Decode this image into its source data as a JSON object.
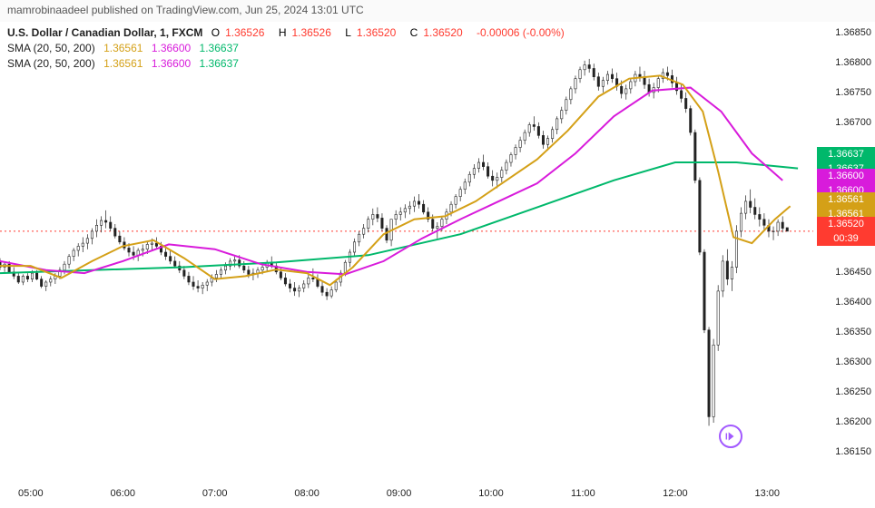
{
  "header": {
    "text": "mamrobinaadeel published on TradingView.com, Jun 25, 2024 13:01 UTC"
  },
  "symbol": {
    "name": "U.S. Dollar / Canadian Dollar, 1, FXCM"
  },
  "ohlc": {
    "open_lbl": "O",
    "open": "1.36526",
    "high_lbl": "H",
    "high": "1.36526",
    "low_lbl": "L",
    "low": "1.36520",
    "close_lbl": "C",
    "close": "1.36520",
    "change": "-0.00006 (-0.00%)"
  },
  "indicators": [
    {
      "name": "SMA (20, 50, 200)",
      "v1": "1.36561",
      "c1": "#d4a017",
      "v2": "1.36600",
      "c2": "#d81bdb",
      "v3": "1.36637",
      "c3": "#00b86b"
    },
    {
      "name": "SMA (20, 50, 200)",
      "v1": "1.36561",
      "c1": "#d4a017",
      "v2": "1.36600",
      "c2": "#d81bdb",
      "v3": "1.36637",
      "c3": "#00b86b"
    }
  ],
  "axes": {
    "y": {
      "min": 1.361,
      "max": 1.3687,
      "ticks": [
        1.3685,
        1.368,
        1.3675,
        1.367,
        1.36637,
        1.366,
        1.36561,
        1.3652,
        1.3645,
        1.364,
        1.3635,
        1.363,
        1.3625,
        1.362,
        1.3615
      ],
      "plain_ticks": [
        1.3685,
        1.368,
        1.3675,
        1.367,
        1.3645,
        1.364,
        1.3635,
        1.363,
        1.3625,
        1.362,
        1.3615
      ]
    },
    "x": {
      "min": 0,
      "max": 530,
      "ticks": [
        {
          "t": 20,
          "l": "05:00"
        },
        {
          "t": 80,
          "l": "06:00"
        },
        {
          "t": 140,
          "l": "07:00"
        },
        {
          "t": 200,
          "l": "08:00"
        },
        {
          "t": 260,
          "l": "09:00"
        },
        {
          "t": 320,
          "l": "10:00"
        },
        {
          "t": 380,
          "l": "11:00"
        },
        {
          "t": 440,
          "l": "12:00"
        },
        {
          "t": 500,
          "l": "13:00"
        }
      ]
    }
  },
  "price_tags": [
    {
      "val": "1.36637",
      "val2": "1.36637",
      "y": 1.36637,
      "color": "#00b86b"
    },
    {
      "val": "1.36600",
      "val2": "1.36600",
      "y": 1.366,
      "color": "#d81bdb"
    },
    {
      "val": "1.36561",
      "val2": "1.36561",
      "y": 1.36561,
      "color": "#d4a017"
    },
    {
      "val": "1.36520",
      "val2": "00:39",
      "y": 1.3652,
      "color": "#ff3b30"
    }
  ],
  "last_price_line": {
    "y": 1.3652,
    "color": "#ff3b30"
  },
  "colors": {
    "sma20": "#d4a017",
    "sma50": "#d81bdb",
    "sma200": "#00b86b",
    "up": "#222",
    "down": "#222",
    "bg": "#ffffff"
  },
  "sma20": [
    [
      0,
      1.36462
    ],
    [
      20,
      1.36462
    ],
    [
      40,
      1.36442
    ],
    [
      60,
      1.3647
    ],
    [
      80,
      1.36495
    ],
    [
      100,
      1.36505
    ],
    [
      120,
      1.36475
    ],
    [
      140,
      1.3644
    ],
    [
      160,
      1.36445
    ],
    [
      180,
      1.36456
    ],
    [
      200,
      1.3645
    ],
    [
      215,
      1.3643
    ],
    [
      230,
      1.3646
    ],
    [
      250,
      1.36515
    ],
    [
      270,
      1.3654
    ],
    [
      290,
      1.36545
    ],
    [
      310,
      1.3657
    ],
    [
      330,
      1.36605
    ],
    [
      350,
      1.3664
    ],
    [
      370,
      1.36688
    ],
    [
      390,
      1.36745
    ],
    [
      410,
      1.36775
    ],
    [
      430,
      1.3678
    ],
    [
      445,
      1.36765
    ],
    [
      458,
      1.3672
    ],
    [
      468,
      1.3662
    ],
    [
      478,
      1.3651
    ],
    [
      490,
      1.365
    ],
    [
      505,
      1.3654
    ],
    [
      515,
      1.36562
    ]
  ],
  "sma50": [
    [
      0,
      1.3647
    ],
    [
      30,
      1.36455
    ],
    [
      55,
      1.3645
    ],
    [
      80,
      1.3647
    ],
    [
      110,
      1.36498
    ],
    [
      140,
      1.3649
    ],
    [
      170,
      1.36465
    ],
    [
      200,
      1.36452
    ],
    [
      225,
      1.36448
    ],
    [
      250,
      1.3647
    ],
    [
      275,
      1.36508
    ],
    [
      300,
      1.3654
    ],
    [
      325,
      1.3657
    ],
    [
      350,
      1.366
    ],
    [
      375,
      1.3665
    ],
    [
      400,
      1.36712
    ],
    [
      425,
      1.36755
    ],
    [
      450,
      1.3676
    ],
    [
      470,
      1.3672
    ],
    [
      490,
      1.3665
    ],
    [
      510,
      1.36605
    ]
  ],
  "sma200": [
    [
      0,
      1.3645
    ],
    [
      60,
      1.36455
    ],
    [
      120,
      1.3646
    ],
    [
      180,
      1.36468
    ],
    [
      240,
      1.3648
    ],
    [
      300,
      1.36515
    ],
    [
      350,
      1.3656
    ],
    [
      400,
      1.36605
    ],
    [
      440,
      1.36635
    ],
    [
      480,
      1.36635
    ],
    [
      520,
      1.36625
    ]
  ],
  "candles": [
    [
      0,
      1.3647,
      1.36475,
      1.36455,
      1.3646
    ],
    [
      3,
      1.3646,
      1.36468,
      1.36452,
      1.36465
    ],
    [
      6,
      1.36465,
      1.3647,
      1.3645,
      1.36452
    ],
    [
      9,
      1.36452,
      1.3646,
      1.3644,
      1.36445
    ],
    [
      12,
      1.36445,
      1.3645,
      1.36432,
      1.36435
    ],
    [
      15,
      1.36435,
      1.36448,
      1.3643,
      1.36445
    ],
    [
      18,
      1.36445,
      1.3645,
      1.36435,
      1.3644
    ],
    [
      21,
      1.3644,
      1.36455,
      1.36435,
      1.3645
    ],
    [
      24,
      1.3645,
      1.36455,
      1.36438,
      1.3644
    ],
    [
      27,
      1.3644,
      1.36445,
      1.36425,
      1.36428
    ],
    [
      30,
      1.36428,
      1.36438,
      1.3642,
      1.36435
    ],
    [
      33,
      1.36435,
      1.36445,
      1.36428,
      1.3644
    ],
    [
      36,
      1.3644,
      1.3645,
      1.36432,
      1.36445
    ],
    [
      39,
      1.36445,
      1.3646,
      1.3644,
      1.36455
    ],
    [
      42,
      1.36455,
      1.3647,
      1.36448,
      1.36465
    ],
    [
      45,
      1.36465,
      1.36482,
      1.36458,
      1.36478
    ],
    [
      48,
      1.36478,
      1.36492,
      1.3647,
      1.36488
    ],
    [
      51,
      1.36488,
      1.365,
      1.36478,
      1.36495
    ],
    [
      54,
      1.36495,
      1.3651,
      1.36485,
      1.365
    ],
    [
      57,
      1.365,
      1.36515,
      1.3649,
      1.36508
    ],
    [
      60,
      1.36508,
      1.36525,
      1.36498,
      1.3652
    ],
    [
      63,
      1.3652,
      1.3654,
      1.3651,
      1.3653
    ],
    [
      66,
      1.3653,
      1.36545,
      1.36518,
      1.36538
    ],
    [
      69,
      1.36538,
      1.36555,
      1.36525,
      1.36535
    ],
    [
      72,
      1.36535,
      1.36545,
      1.3652,
      1.36525
    ],
    [
      75,
      1.36525,
      1.36532,
      1.36508,
      1.36512
    ],
    [
      78,
      1.36512,
      1.3652,
      1.36498,
      1.36502
    ],
    [
      81,
      1.36502,
      1.3651,
      1.36488,
      1.36492
    ],
    [
      84,
      1.36492,
      1.365,
      1.36478,
      1.36485
    ],
    [
      87,
      1.36485,
      1.36495,
      1.36472,
      1.3648
    ],
    [
      90,
      1.3648,
      1.36492,
      1.3647,
      1.36488
    ],
    [
      93,
      1.36488,
      1.36498,
      1.36478,
      1.3649
    ],
    [
      96,
      1.3649,
      1.36502,
      1.36482,
      1.36498
    ],
    [
      99,
      1.36498,
      1.36508,
      1.36488,
      1.365
    ],
    [
      102,
      1.365,
      1.3651,
      1.3649,
      1.36495
    ],
    [
      105,
      1.36495,
      1.36502,
      1.3648,
      1.36485
    ],
    [
      108,
      1.36485,
      1.36495,
      1.36472,
      1.36478
    ],
    [
      111,
      1.36478,
      1.36488,
      1.36465,
      1.3647
    ],
    [
      114,
      1.3647,
      1.36478,
      1.36458,
      1.36462
    ],
    [
      117,
      1.36462,
      1.3647,
      1.3645,
      1.36455
    ],
    [
      120,
      1.36455,
      1.36462,
      1.3644,
      1.36445
    ],
    [
      123,
      1.36445,
      1.36452,
      1.3643,
      1.36435
    ],
    [
      126,
      1.36435,
      1.36445,
      1.36422,
      1.36428
    ],
    [
      129,
      1.36428,
      1.36438,
      1.36418,
      1.36425
    ],
    [
      132,
      1.36425,
      1.36435,
      1.36415,
      1.3643
    ],
    [
      135,
      1.3643,
      1.3644,
      1.3642,
      1.36435
    ],
    [
      138,
      1.36435,
      1.36448,
      1.36428,
      1.36442
    ],
    [
      141,
      1.36442,
      1.36455,
      1.36435,
      1.36448
    ],
    [
      144,
      1.36448,
      1.3646,
      1.3644,
      1.36455
    ],
    [
      147,
      1.36455,
      1.36468,
      1.36448,
      1.36462
    ],
    [
      150,
      1.36462,
      1.36475,
      1.36455,
      1.3647
    ],
    [
      153,
      1.3647,
      1.3648,
      1.3646,
      1.36472
    ],
    [
      156,
      1.36472,
      1.3648,
      1.36458,
      1.36462
    ],
    [
      159,
      1.36462,
      1.3647,
      1.3645,
      1.36455
    ],
    [
      162,
      1.36455,
      1.36462,
      1.36442,
      1.36448
    ],
    [
      165,
      1.36448,
      1.36458,
      1.36438,
      1.3645
    ],
    [
      168,
      1.3645,
      1.3646,
      1.36442,
      1.36455
    ],
    [
      171,
      1.36455,
      1.36465,
      1.36448,
      1.3646
    ],
    [
      174,
      1.3646,
      1.36472,
      1.36452,
      1.36468
    ],
    [
      177,
      1.36468,
      1.36478,
      1.36458,
      1.36462
    ],
    [
      180,
      1.36462,
      1.36468,
      1.36448,
      1.36452
    ],
    [
      183,
      1.36452,
      1.36458,
      1.36438,
      1.36442
    ],
    [
      186,
      1.36442,
      1.3645,
      1.36428,
      1.36432
    ],
    [
      189,
      1.36432,
      1.3644,
      1.36418,
      1.36425
    ],
    [
      192,
      1.36425,
      1.36435,
      1.36412,
      1.3642
    ],
    [
      195,
      1.3642,
      1.3643,
      1.3641,
      1.36425
    ],
    [
      198,
      1.36425,
      1.36438,
      1.36418,
      1.36432
    ],
    [
      201,
      1.36432,
      1.36448,
      1.36425,
      1.36442
    ],
    [
      204,
      1.36442,
      1.36458,
      1.36435,
      1.3644
    ],
    [
      207,
      1.3644,
      1.36448,
      1.36425,
      1.36428
    ],
    [
      210,
      1.36428,
      1.36435,
      1.36412,
      1.36418
    ],
    [
      213,
      1.36418,
      1.36425,
      1.36405,
      1.36412
    ],
    [
      216,
      1.36412,
      1.36428,
      1.36408,
      1.36422
    ],
    [
      219,
      1.36422,
      1.3644,
      1.36418,
      1.36435
    ],
    [
      222,
      1.36435,
      1.36455,
      1.36428,
      1.3645
    ],
    [
      225,
      1.3645,
      1.36472,
      1.36445,
      1.36468
    ],
    [
      228,
      1.36468,
      1.3649,
      1.3646,
      1.36485
    ],
    [
      231,
      1.36485,
      1.36508,
      1.36478,
      1.36502
    ],
    [
      234,
      1.36502,
      1.3652,
      1.36495,
      1.36515
    ],
    [
      237,
      1.36515,
      1.36532,
      1.36508,
      1.36525
    ],
    [
      240,
      1.36525,
      1.36545,
      1.36518,
      1.3654
    ],
    [
      243,
      1.3654,
      1.36558,
      1.3653,
      1.36548
    ],
    [
      246,
      1.36548,
      1.3656,
      1.36535,
      1.36542
    ],
    [
      249,
      1.36542,
      1.3655,
      1.3652,
      1.36525
    ],
    [
      252,
      1.36525,
      1.3653,
      1.365,
      1.36505
    ],
    [
      255,
      1.36505,
      1.36518,
      1.36495,
      1.3654
    ],
    [
      258,
      1.3654,
      1.36555,
      1.3653,
      1.36548
    ],
    [
      261,
      1.36548,
      1.3656,
      1.36538,
      1.36552
    ],
    [
      264,
      1.36552,
      1.36565,
      1.36542,
      1.36558
    ],
    [
      267,
      1.36558,
      1.3657,
      1.36548,
      1.36562
    ],
    [
      270,
      1.36562,
      1.36578,
      1.36552,
      1.3657
    ],
    [
      273,
      1.3657,
      1.36582,
      1.36558,
      1.36565
    ],
    [
      276,
      1.36565,
      1.36572,
      1.36548,
      1.36552
    ],
    [
      279,
      1.36552,
      1.3656,
      1.36535,
      1.3654
    ],
    [
      282,
      1.3654,
      1.36548,
      1.3652,
      1.36525
    ],
    [
      285,
      1.36525,
      1.36535,
      1.36508,
      1.36528
    ],
    [
      288,
      1.36528,
      1.36545,
      1.3652,
      1.3654
    ],
    [
      291,
      1.3654,
      1.36558,
      1.36532,
      1.36552
    ],
    [
      294,
      1.36552,
      1.3657,
      1.36545,
      1.36565
    ],
    [
      297,
      1.36565,
      1.36582,
      1.36558,
      1.36578
    ],
    [
      300,
      1.36578,
      1.36595,
      1.3657,
      1.3659
    ],
    [
      303,
      1.3659,
      1.36608,
      1.36582,
      1.36602
    ],
    [
      306,
      1.36602,
      1.3662,
      1.36595,
      1.36615
    ],
    [
      309,
      1.36615,
      1.36632,
      1.36608,
      1.36625
    ],
    [
      312,
      1.36625,
      1.36642,
      1.36618,
      1.36635
    ],
    [
      315,
      1.36635,
      1.36648,
      1.36622,
      1.36628
    ],
    [
      318,
      1.36628,
      1.36635,
      1.36608,
      1.36612
    ],
    [
      321,
      1.36612,
      1.36622,
      1.36595,
      1.36605
    ],
    [
      324,
      1.36605,
      1.36618,
      1.36592,
      1.3661
    ],
    [
      327,
      1.3661,
      1.36628,
      1.36602,
      1.36622
    ],
    [
      330,
      1.36622,
      1.3664,
      1.36615,
      1.36635
    ],
    [
      333,
      1.36635,
      1.36652,
      1.36628,
      1.36648
    ],
    [
      336,
      1.36648,
      1.36665,
      1.3664,
      1.3666
    ],
    [
      339,
      1.3666,
      1.36678,
      1.36652,
      1.36672
    ],
    [
      342,
      1.36672,
      1.3669,
      1.36665,
      1.36685
    ],
    [
      345,
      1.36685,
      1.36702,
      1.36678,
      1.36698
    ],
    [
      348,
      1.36698,
      1.36712,
      1.36688,
      1.36695
    ],
    [
      351,
      1.36695,
      1.36702,
      1.36675,
      1.3668
    ],
    [
      354,
      1.3668,
      1.36688,
      1.36658,
      1.36665
    ],
    [
      357,
      1.36665,
      1.3668,
      1.36655,
      1.36675
    ],
    [
      360,
      1.36675,
      1.36695,
      1.36668,
      1.3669
    ],
    [
      363,
      1.3669,
      1.36712,
      1.36682,
      1.36708
    ],
    [
      366,
      1.36708,
      1.36728,
      1.367,
      1.36722
    ],
    [
      369,
      1.36722,
      1.36745,
      1.36715,
      1.3674
    ],
    [
      372,
      1.3674,
      1.36762,
      1.36732,
      1.36758
    ],
    [
      375,
      1.36758,
      1.3678,
      1.3675,
      1.36775
    ],
    [
      378,
      1.36775,
      1.36795,
      1.36768,
      1.3679
    ],
    [
      381,
      1.3679,
      1.36805,
      1.3678,
      1.36798
    ],
    [
      384,
      1.36798,
      1.36808,
      1.36785,
      1.36792
    ],
    [
      387,
      1.36792,
      1.368,
      1.36772,
      1.36778
    ],
    [
      390,
      1.36778,
      1.36785,
      1.36755,
      1.36762
    ],
    [
      393,
      1.36762,
      1.36778,
      1.36752,
      1.36772
    ],
    [
      396,
      1.36772,
      1.36788,
      1.36765,
      1.36782
    ],
    [
      399,
      1.36782,
      1.36792,
      1.36768,
      1.36775
    ],
    [
      402,
      1.36775,
      1.36785,
      1.36755,
      1.36762
    ],
    [
      405,
      1.36762,
      1.36772,
      1.36742,
      1.3675
    ],
    [
      408,
      1.3675,
      1.36765,
      1.3674,
      1.36758
    ],
    [
      411,
      1.36758,
      1.36775,
      1.3675,
      1.3677
    ],
    [
      414,
      1.3677,
      1.36788,
      1.36762,
      1.36782
    ],
    [
      417,
      1.36782,
      1.36795,
      1.3677,
      1.36778
    ],
    [
      420,
      1.36778,
      1.36788,
      1.36758,
      1.36765
    ],
    [
      423,
      1.36765,
      1.36775,
      1.36745,
      1.36752
    ],
    [
      426,
      1.36752,
      1.36768,
      1.36742,
      1.3676
    ],
    [
      429,
      1.3676,
      1.3678,
      1.36752,
      1.36775
    ],
    [
      432,
      1.36775,
      1.36792,
      1.36768,
      1.36785
    ],
    [
      435,
      1.36785,
      1.36795,
      1.36772,
      1.3678
    ],
    [
      438,
      1.3678,
      1.3679,
      1.3676,
      1.36768
    ],
    [
      441,
      1.36768,
      1.36778,
      1.36748,
      1.36755
    ],
    [
      444,
      1.36755,
      1.36765,
      1.36735,
      1.36742
    ],
    [
      447,
      1.36742,
      1.36752,
      1.36718,
      1.36725
    ],
    [
      450,
      1.36725,
      1.3673,
      1.3668,
      1.36685
    ],
    [
      453,
      1.36685,
      1.3669,
      1.366,
      1.36605
    ],
    [
      456,
      1.36605,
      1.3661,
      1.3648,
      1.36485
    ],
    [
      459,
      1.36485,
      1.3649,
      1.3635,
      1.36355
    ],
    [
      462,
      1.36355,
      1.3636,
      1.36195,
      1.3621
    ],
    [
      465,
      1.3621,
      1.3634,
      1.362,
      1.3633
    ],
    [
      468,
      1.3633,
      1.3643,
      1.3632,
      1.3642
    ],
    [
      471,
      1.3642,
      1.3648,
      1.3641,
      1.3647
    ],
    [
      474,
      1.3647,
      1.3649,
      1.3643,
      1.3644
    ],
    [
      477,
      1.3644,
      1.3647,
      1.3642,
      1.3646
    ],
    [
      480,
      1.3646,
      1.3653,
      1.3645,
      1.3652
    ],
    [
      483,
      1.3652,
      1.3656,
      1.3651,
      1.3655
    ],
    [
      486,
      1.3655,
      1.3658,
      1.3654,
      1.3657
    ],
    [
      489,
      1.3657,
      1.3659,
      1.3655,
      1.3656
    ],
    [
      492,
      1.3656,
      1.36575,
      1.3654,
      1.36548
    ],
    [
      495,
      1.36548,
      1.3656,
      1.36528,
      1.3654
    ],
    [
      498,
      1.3654,
      1.3655,
      1.3652,
      1.3653
    ],
    [
      501,
      1.3653,
      1.3654,
      1.3651,
      1.3652
    ],
    [
      504,
      1.3652,
      1.36528,
      1.36505,
      1.3652
    ],
    [
      507,
      1.3652,
      1.3654,
      1.36512,
      1.36535
    ],
    [
      510,
      1.36535,
      1.36545,
      1.36518,
      1.36525
    ],
    [
      513,
      1.36526,
      1.36526,
      1.3652,
      1.3652
    ]
  ]
}
